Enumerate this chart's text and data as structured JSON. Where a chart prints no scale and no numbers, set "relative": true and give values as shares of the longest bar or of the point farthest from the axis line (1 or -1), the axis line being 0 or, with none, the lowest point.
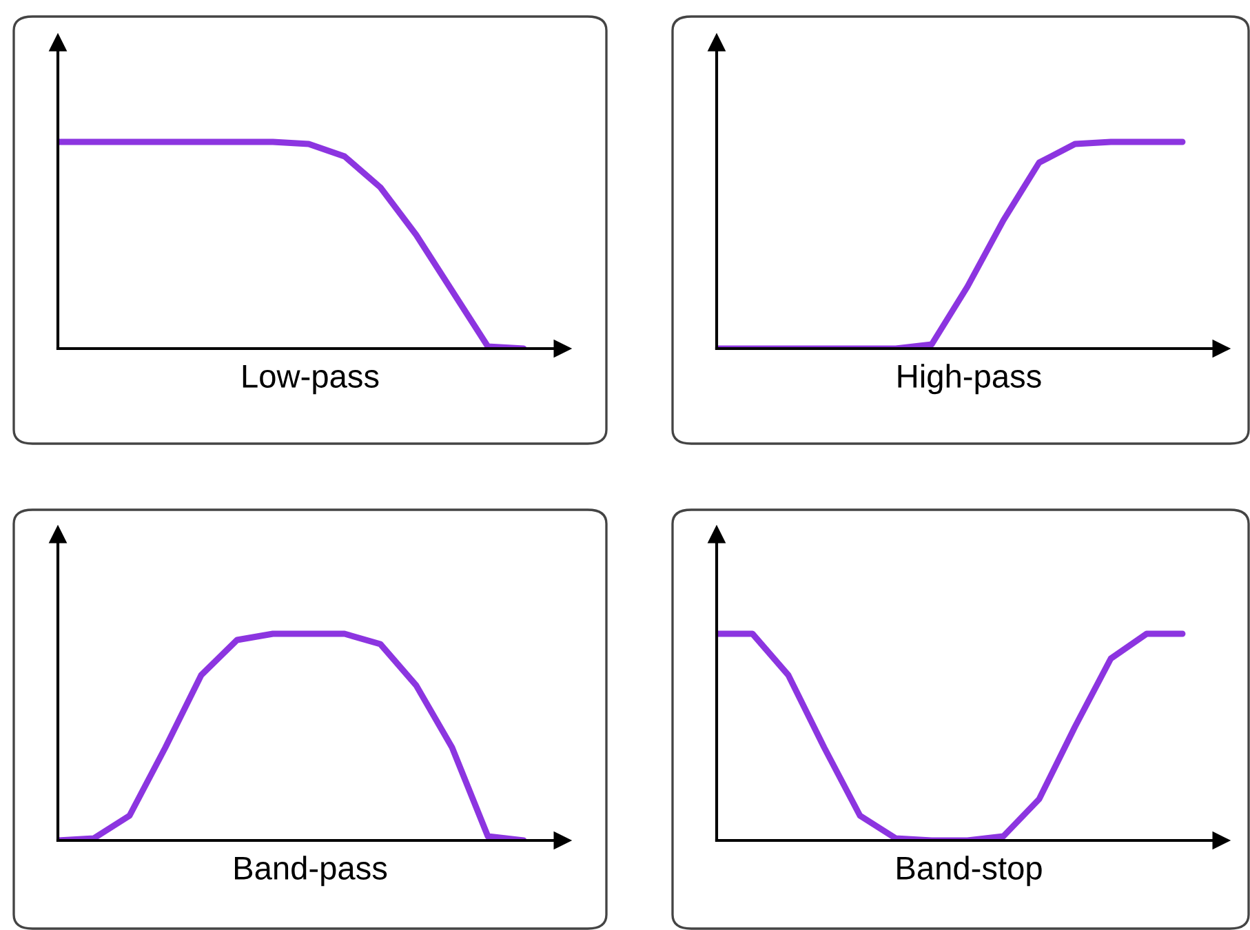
{
  "chart_data": [
    {
      "type": "line",
      "xlabel": "Low-pass",
      "relative": true,
      "tick_labels": false,
      "categories": [
        null,
        null,
        null,
        null,
        null,
        null,
        null,
        null,
        null,
        null,
        null,
        null,
        null,
        null
      ],
      "series": [
        {
          "color": "#8c35e0",
          "values": [
            1,
            1,
            1,
            1,
            1,
            1,
            1,
            0.99,
            0.93,
            0.78,
            0.55,
            0.28,
            0.01,
            0
          ]
        }
      ]
    },
    {
      "type": "line",
      "xlabel": "High-pass",
      "relative": true,
      "tick_labels": false,
      "categories": [
        null,
        null,
        null,
        null,
        null,
        null,
        null,
        null,
        null,
        null,
        null,
        null,
        null,
        null
      ],
      "series": [
        {
          "color": "#8c35e0",
          "values": [
            0,
            0,
            0,
            0,
            0,
            0,
            0.02,
            0.3,
            0.62,
            0.9,
            0.99,
            1,
            1,
            1
          ]
        }
      ]
    },
    {
      "type": "line",
      "xlabel": "Band-pass",
      "relative": true,
      "tick_labels": false,
      "categories": [
        null,
        null,
        null,
        null,
        null,
        null,
        null,
        null,
        null,
        null,
        null,
        null,
        null,
        null
      ],
      "series": [
        {
          "color": "#8c35e0",
          "values": [
            0,
            0.01,
            0.12,
            0.45,
            0.8,
            0.97,
            1,
            1,
            1,
            0.95,
            0.75,
            0.45,
            0.02,
            0
          ]
        }
      ]
    },
    {
      "type": "line",
      "xlabel": "Band-stop",
      "relative": true,
      "tick_labels": false,
      "categories": [
        null,
        null,
        null,
        null,
        null,
        null,
        null,
        null,
        null,
        null,
        null,
        null,
        null,
        null
      ],
      "series": [
        {
          "color": "#8c35e0",
          "values": [
            1,
            1,
            0.8,
            0.45,
            0.12,
            0.01,
            0,
            0,
            0.02,
            0.2,
            0.55,
            0.88,
            1,
            1
          ]
        }
      ]
    }
  ]
}
